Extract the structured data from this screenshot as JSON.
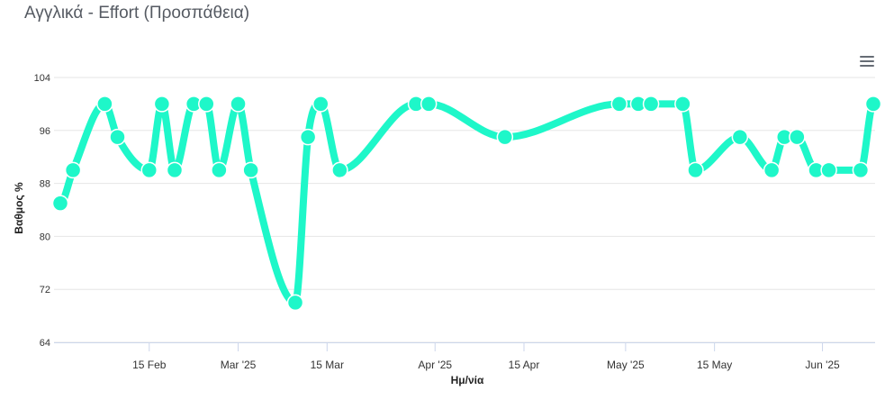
{
  "title": "Αγγλικά - Effort (Προσπάθεια)",
  "menu_icon": "hamburger-menu-icon",
  "colors": {
    "series": "#1ef7c9",
    "grid": "#e6e6e6",
    "axis": "#ccd6eb"
  },
  "chart_data": {
    "type": "line",
    "xlabel": "Ημ/νία",
    "ylabel": "Βαθμος %",
    "ylim": [
      64,
      104
    ],
    "y_ticks": [
      64,
      72,
      80,
      88,
      96,
      104
    ],
    "y_tick_labels": [
      "64",
      "72",
      "80",
      "88",
      "96",
      "104"
    ],
    "x_ticks": [
      "2025-02-15",
      "2025-03-01",
      "2025-03-15",
      "2025-04-01",
      "2025-04-15",
      "2025-05-01",
      "2025-05-15",
      "2025-06-01"
    ],
    "x_tick_labels": [
      "15 Feb",
      "Mar '25",
      "15 Mar",
      "Apr '25",
      "15 Apr",
      "May '25",
      "15 May",
      "Jun '25"
    ],
    "grid": true,
    "series": [
      {
        "points": [
          {
            "x": "2025-02-01",
            "y": 85
          },
          {
            "x": "2025-02-03",
            "y": 90
          },
          {
            "x": "2025-02-08",
            "y": 100
          },
          {
            "x": "2025-02-10",
            "y": 95
          },
          {
            "x": "2025-02-15",
            "y": 90
          },
          {
            "x": "2025-02-17",
            "y": 100
          },
          {
            "x": "2025-02-19",
            "y": 90
          },
          {
            "x": "2025-02-22",
            "y": 100
          },
          {
            "x": "2025-02-24",
            "y": 100
          },
          {
            "x": "2025-02-26",
            "y": 90
          },
          {
            "x": "2025-03-01",
            "y": 100
          },
          {
            "x": "2025-03-03",
            "y": 90
          },
          {
            "x": "2025-03-10",
            "y": 70
          },
          {
            "x": "2025-03-12",
            "y": 95
          },
          {
            "x": "2025-03-14",
            "y": 100
          },
          {
            "x": "2025-03-17",
            "y": 90
          },
          {
            "x": "2025-03-29",
            "y": 100
          },
          {
            "x": "2025-03-31",
            "y": 100
          },
          {
            "x": "2025-04-12",
            "y": 95
          },
          {
            "x": "2025-04-30",
            "y": 100
          },
          {
            "x": "2025-05-03",
            "y": 100
          },
          {
            "x": "2025-05-05",
            "y": 100
          },
          {
            "x": "2025-05-10",
            "y": 100
          },
          {
            "x": "2025-05-12",
            "y": 90
          },
          {
            "x": "2025-05-19",
            "y": 95
          },
          {
            "x": "2025-05-24",
            "y": 90
          },
          {
            "x": "2025-05-26",
            "y": 95
          },
          {
            "x": "2025-05-28",
            "y": 95
          },
          {
            "x": "2025-05-31",
            "y": 90
          },
          {
            "x": "2025-06-02",
            "y": 90
          },
          {
            "x": "2025-06-07",
            "y": 90
          },
          {
            "x": "2025-06-09",
            "y": 100
          }
        ]
      }
    ]
  }
}
